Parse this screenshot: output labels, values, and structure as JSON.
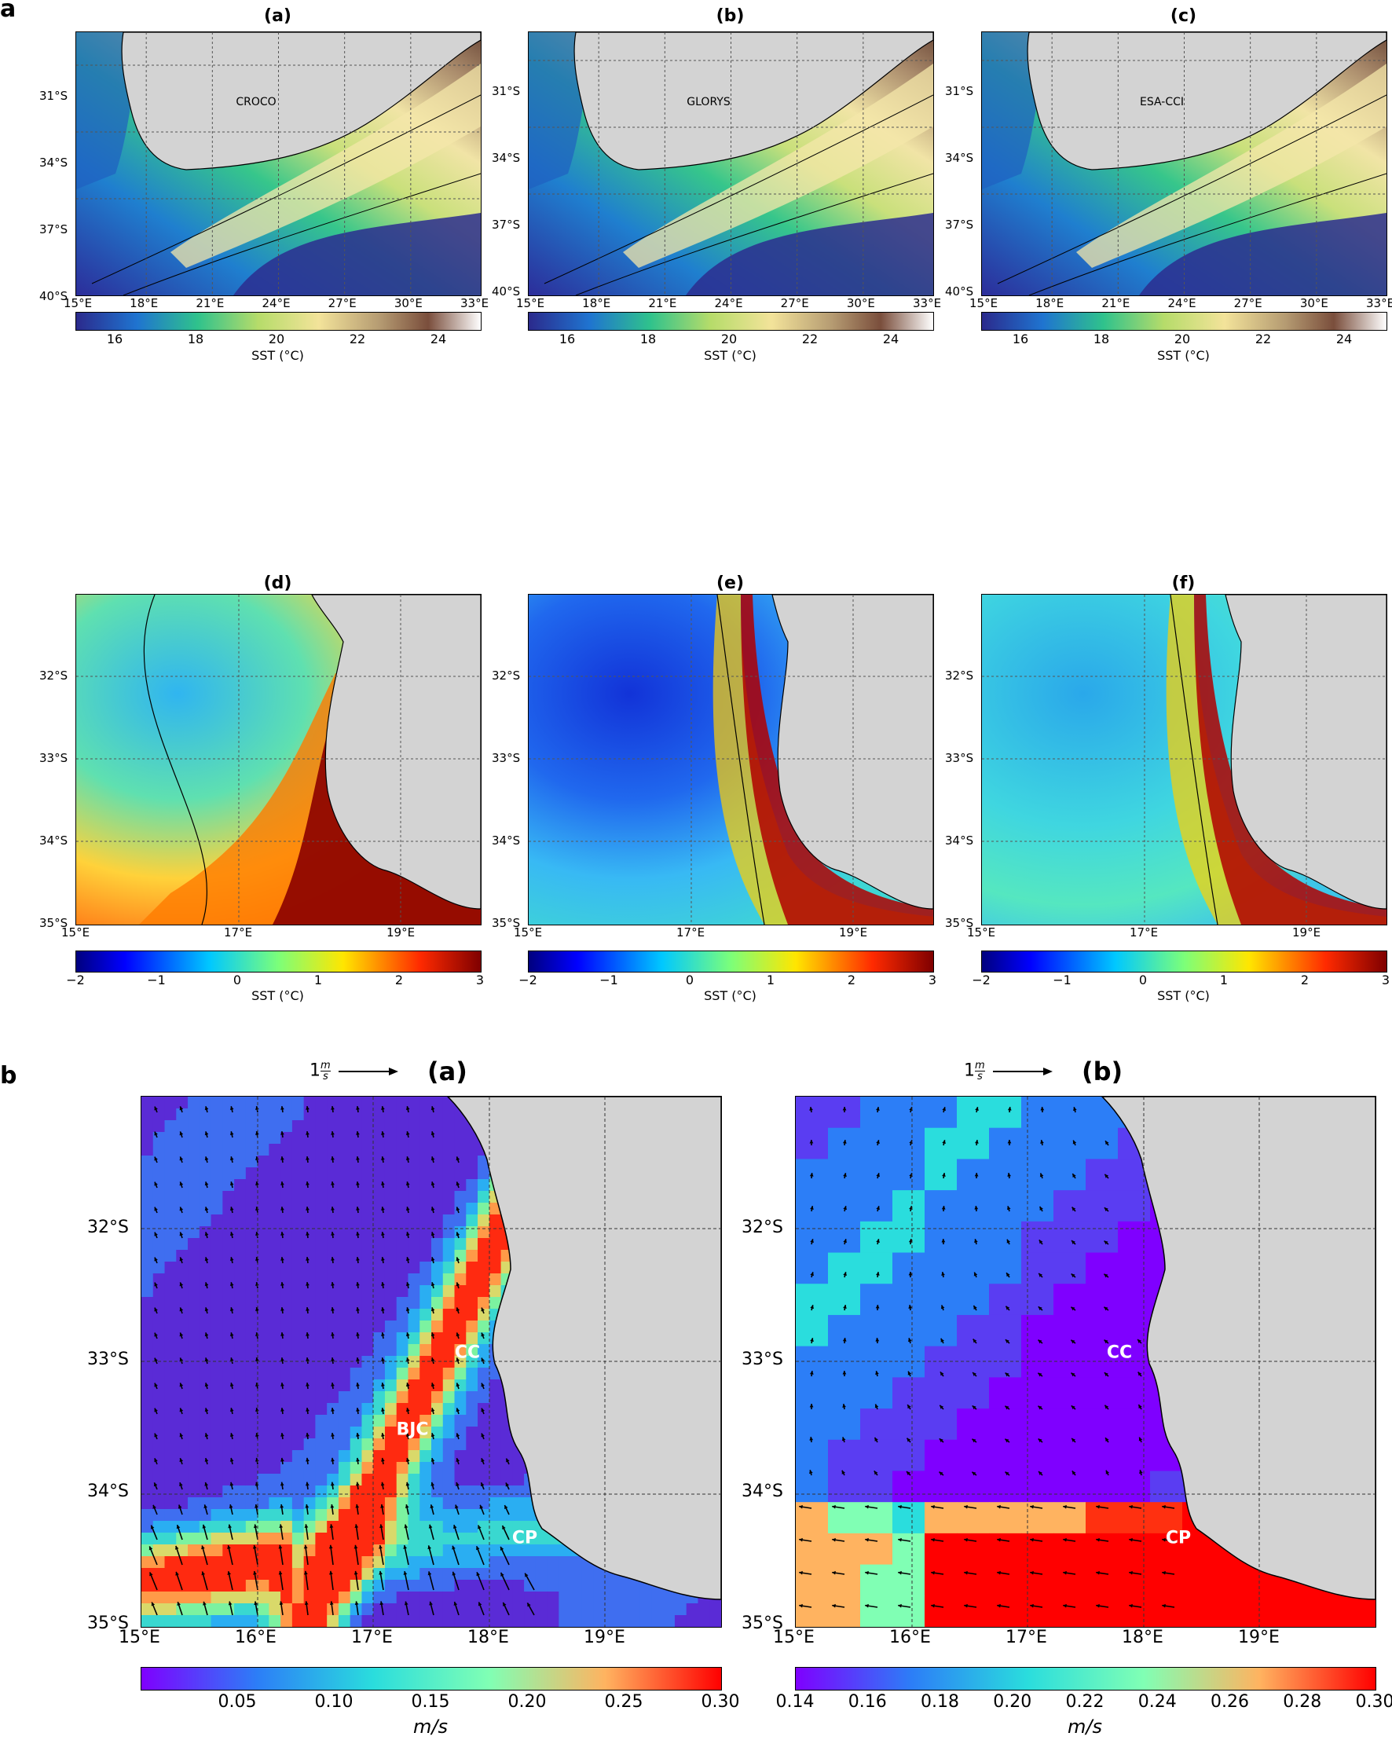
{
  "sections": {
    "a": "a",
    "b": "b"
  },
  "top_row": [
    {
      "title": "(a)",
      "name": "CROCO",
      "lat": [
        "31°S",
        "34°S",
        "37°S",
        "40°S"
      ],
      "lon": [
        "15°E",
        "18°E",
        "21°E",
        "24°E",
        "27°E",
        "30°E",
        "33°E"
      ]
    },
    {
      "title": "(b)",
      "name": "GLORYS",
      "lat": [
        "31°S",
        "34°S",
        "37°S",
        "40°S"
      ],
      "lon": [
        "15°E",
        "18°E",
        "21°E",
        "24°E",
        "27°E",
        "30°E",
        "33°E"
      ]
    },
    {
      "title": "(c)",
      "name": "ESA-CCI",
      "lat": [
        "31°S",
        "34°S",
        "37°S",
        "40°S"
      ],
      "lon": [
        "15°E",
        "18°E",
        "21°E",
        "24°E",
        "27°E",
        "30°E",
        "33°E"
      ]
    }
  ],
  "top_colorbar": {
    "ticks": [
      "16",
      "18",
      "20",
      "22",
      "24"
    ],
    "label": "SST (°C)"
  },
  "mid_row": [
    {
      "title": "(d)",
      "lat": [
        "32°S",
        "33°S",
        "34°S",
        "35°S"
      ],
      "lon": [
        "15°E",
        "17°E",
        "19°E"
      ]
    },
    {
      "title": "(e)",
      "lat": [
        "32°S",
        "33°S",
        "34°S",
        "35°S"
      ],
      "lon": [
        "15°E",
        "17°E",
        "19°E"
      ]
    },
    {
      "title": "(f)",
      "lat": [
        "32°S",
        "33°S",
        "34°S",
        "35°S"
      ],
      "lon": [
        "15°E",
        "17°E",
        "19°E"
      ]
    }
  ],
  "mid_colorbar": {
    "ticks": [
      "−2",
      "−1",
      "0",
      "1",
      "2",
      "3"
    ],
    "label": "SST (°C)"
  },
  "bottom_row": [
    {
      "title": "(a)",
      "ref": "1",
      "lat": [
        "32°S",
        "33°S",
        "34°S",
        "35°S"
      ],
      "lon": [
        "15°E",
        "16°E",
        "17°E",
        "18°E",
        "19°E"
      ],
      "places": [
        "CC",
        "BJC",
        "CP"
      ],
      "colorbar": {
        "ticks": [
          "0.05",
          "0.10",
          "0.15",
          "0.20",
          "0.25",
          "0.30"
        ],
        "label": "m/s"
      }
    },
    {
      "title": "(b)",
      "ref": "1",
      "lat": [
        "32°S",
        "33°S",
        "34°S",
        "35°S"
      ],
      "lon": [
        "15°E",
        "16°E",
        "17°E",
        "18°E",
        "19°E"
      ],
      "places": [
        "CC",
        "CP"
      ],
      "colorbar": {
        "ticks": [
          "0.14",
          "0.16",
          "0.18",
          "0.20",
          "0.22",
          "0.24",
          "0.26",
          "0.28",
          "0.30"
        ],
        "label": "m/s"
      }
    }
  ],
  "ref_unit": {
    "num": "m",
    "den": "s"
  },
  "colors": {
    "land": "#d3d3d3",
    "grid": "#444444"
  }
}
